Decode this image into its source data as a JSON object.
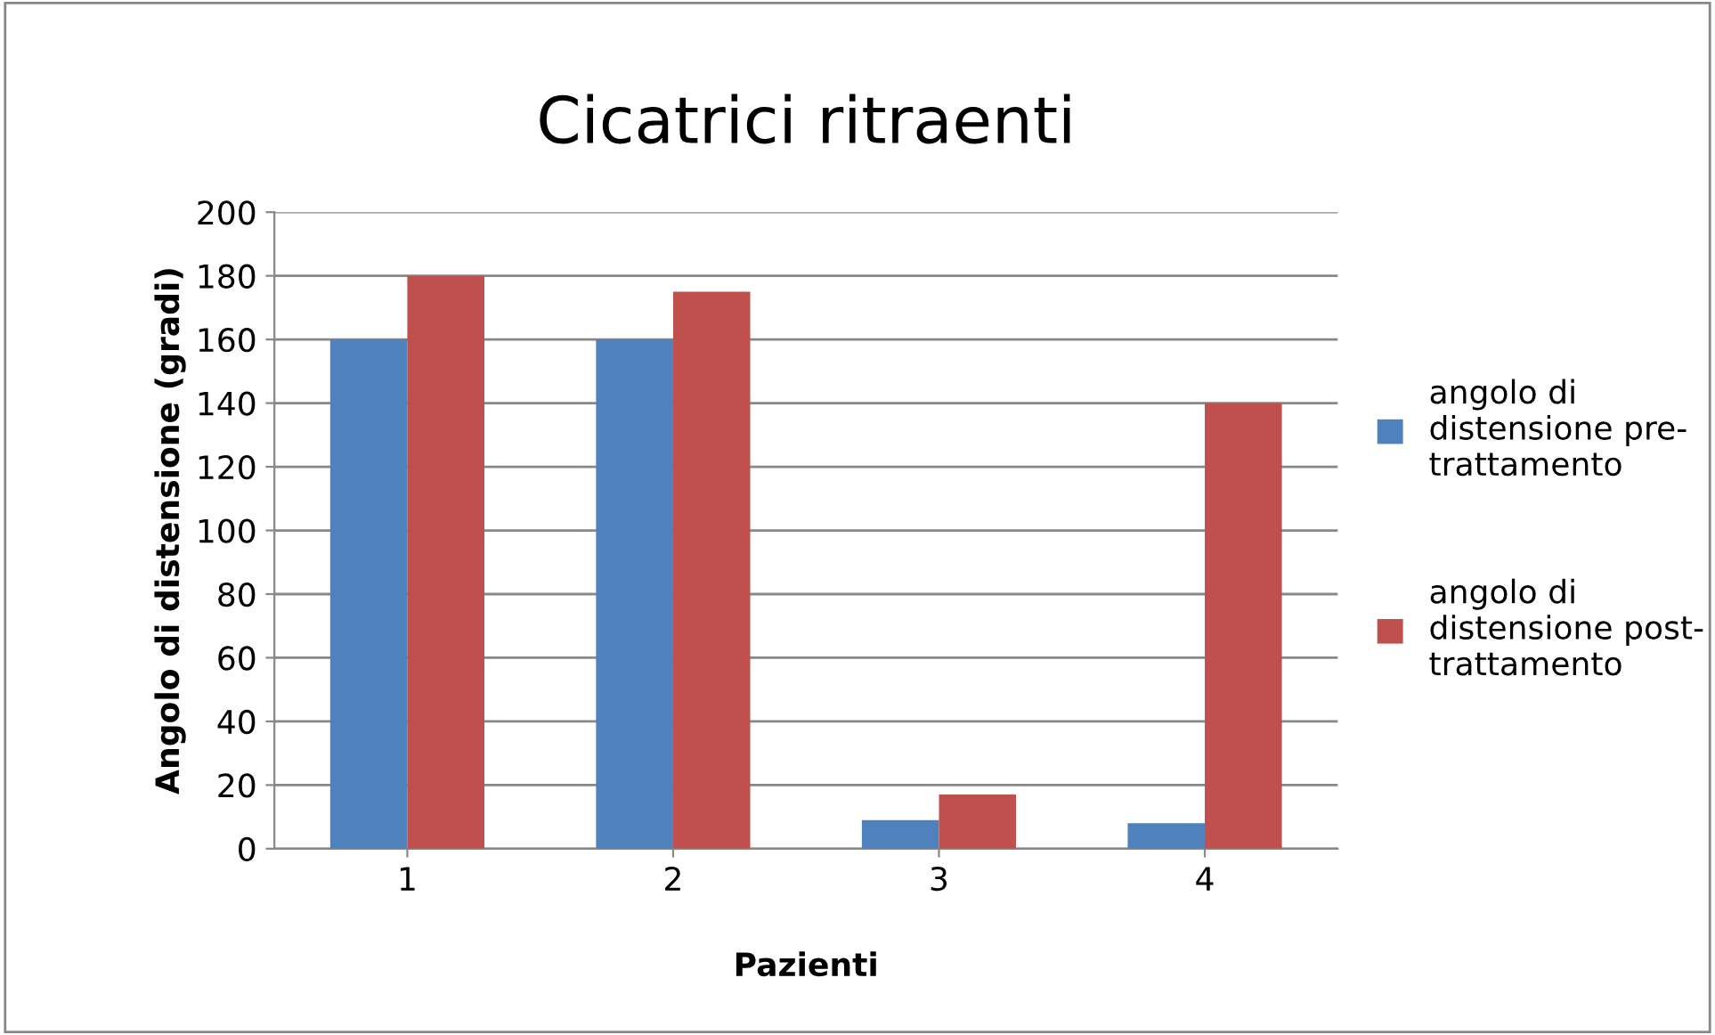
{
  "chart_data": {
    "type": "bar",
    "title": "Cicatrici ritraenti",
    "xlabel": "Pazienti",
    "ylabel": "Angolo di distensione (gradi)",
    "categories": [
      "1",
      "2",
      "3",
      "4"
    ],
    "series": [
      {
        "name": "angolo di distensione pre-trattamento",
        "color": "#4f81bd",
        "values": [
          160,
          160,
          9,
          8
        ]
      },
      {
        "name": "angolo di distensione post-trattamento",
        "color": "#c0504d",
        "values": [
          180,
          175,
          17,
          140
        ]
      }
    ],
    "ylim": [
      0,
      200
    ],
    "yticks": [
      0,
      20,
      40,
      60,
      80,
      100,
      120,
      140,
      160,
      180,
      200
    ],
    "grid": "y",
    "legend": "right"
  }
}
